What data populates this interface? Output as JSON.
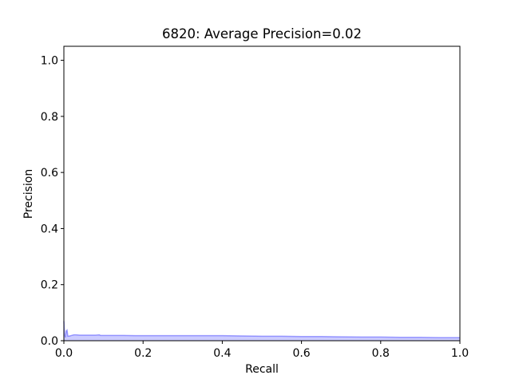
{
  "chart_data": {
    "type": "area",
    "title": "6820: Average Precision=0.02",
    "xlabel": "Recall",
    "ylabel": "Precision",
    "xlim": [
      0.0,
      1.0
    ],
    "ylim": [
      0.0,
      1.05
    ],
    "grid": false,
    "x_ticks": [
      0.0,
      0.2,
      0.4,
      0.6,
      0.8,
      1.0
    ],
    "x_tick_labels": [
      "0.0",
      "0.2",
      "0.4",
      "0.6",
      "0.8",
      "1.0"
    ],
    "y_ticks": [
      0.0,
      0.2,
      0.4,
      0.6,
      0.8,
      1.0
    ],
    "y_tick_labels": [
      "0.0",
      "0.2",
      "0.4",
      "0.6",
      "0.8",
      "1.0"
    ],
    "colors": {
      "line": "#0000ff",
      "fill": "#0000ff"
    },
    "series": [
      {
        "x": [
          0.0,
          0.002,
          0.004,
          0.006,
          0.008,
          0.01,
          0.015,
          0.02,
          0.025,
          0.03,
          0.04,
          0.05,
          0.06,
          0.07,
          0.08,
          0.09,
          0.092,
          0.1,
          0.12,
          0.15,
          0.18,
          0.2,
          0.25,
          0.3,
          0.35,
          0.4,
          0.45,
          0.5,
          0.55,
          0.6,
          0.65,
          0.7,
          0.75,
          0.8,
          0.85,
          0.9,
          0.95,
          1.0
        ],
        "y": [
          0.07,
          0.02,
          0.012,
          0.035,
          0.038,
          0.016,
          0.017,
          0.019,
          0.021,
          0.021,
          0.02,
          0.02,
          0.02,
          0.02,
          0.02,
          0.021,
          0.019,
          0.019,
          0.019,
          0.019,
          0.018,
          0.018,
          0.018,
          0.018,
          0.018,
          0.018,
          0.017,
          0.016,
          0.016,
          0.015,
          0.015,
          0.014,
          0.013,
          0.013,
          0.012,
          0.012,
          0.011,
          0.011
        ]
      }
    ]
  }
}
